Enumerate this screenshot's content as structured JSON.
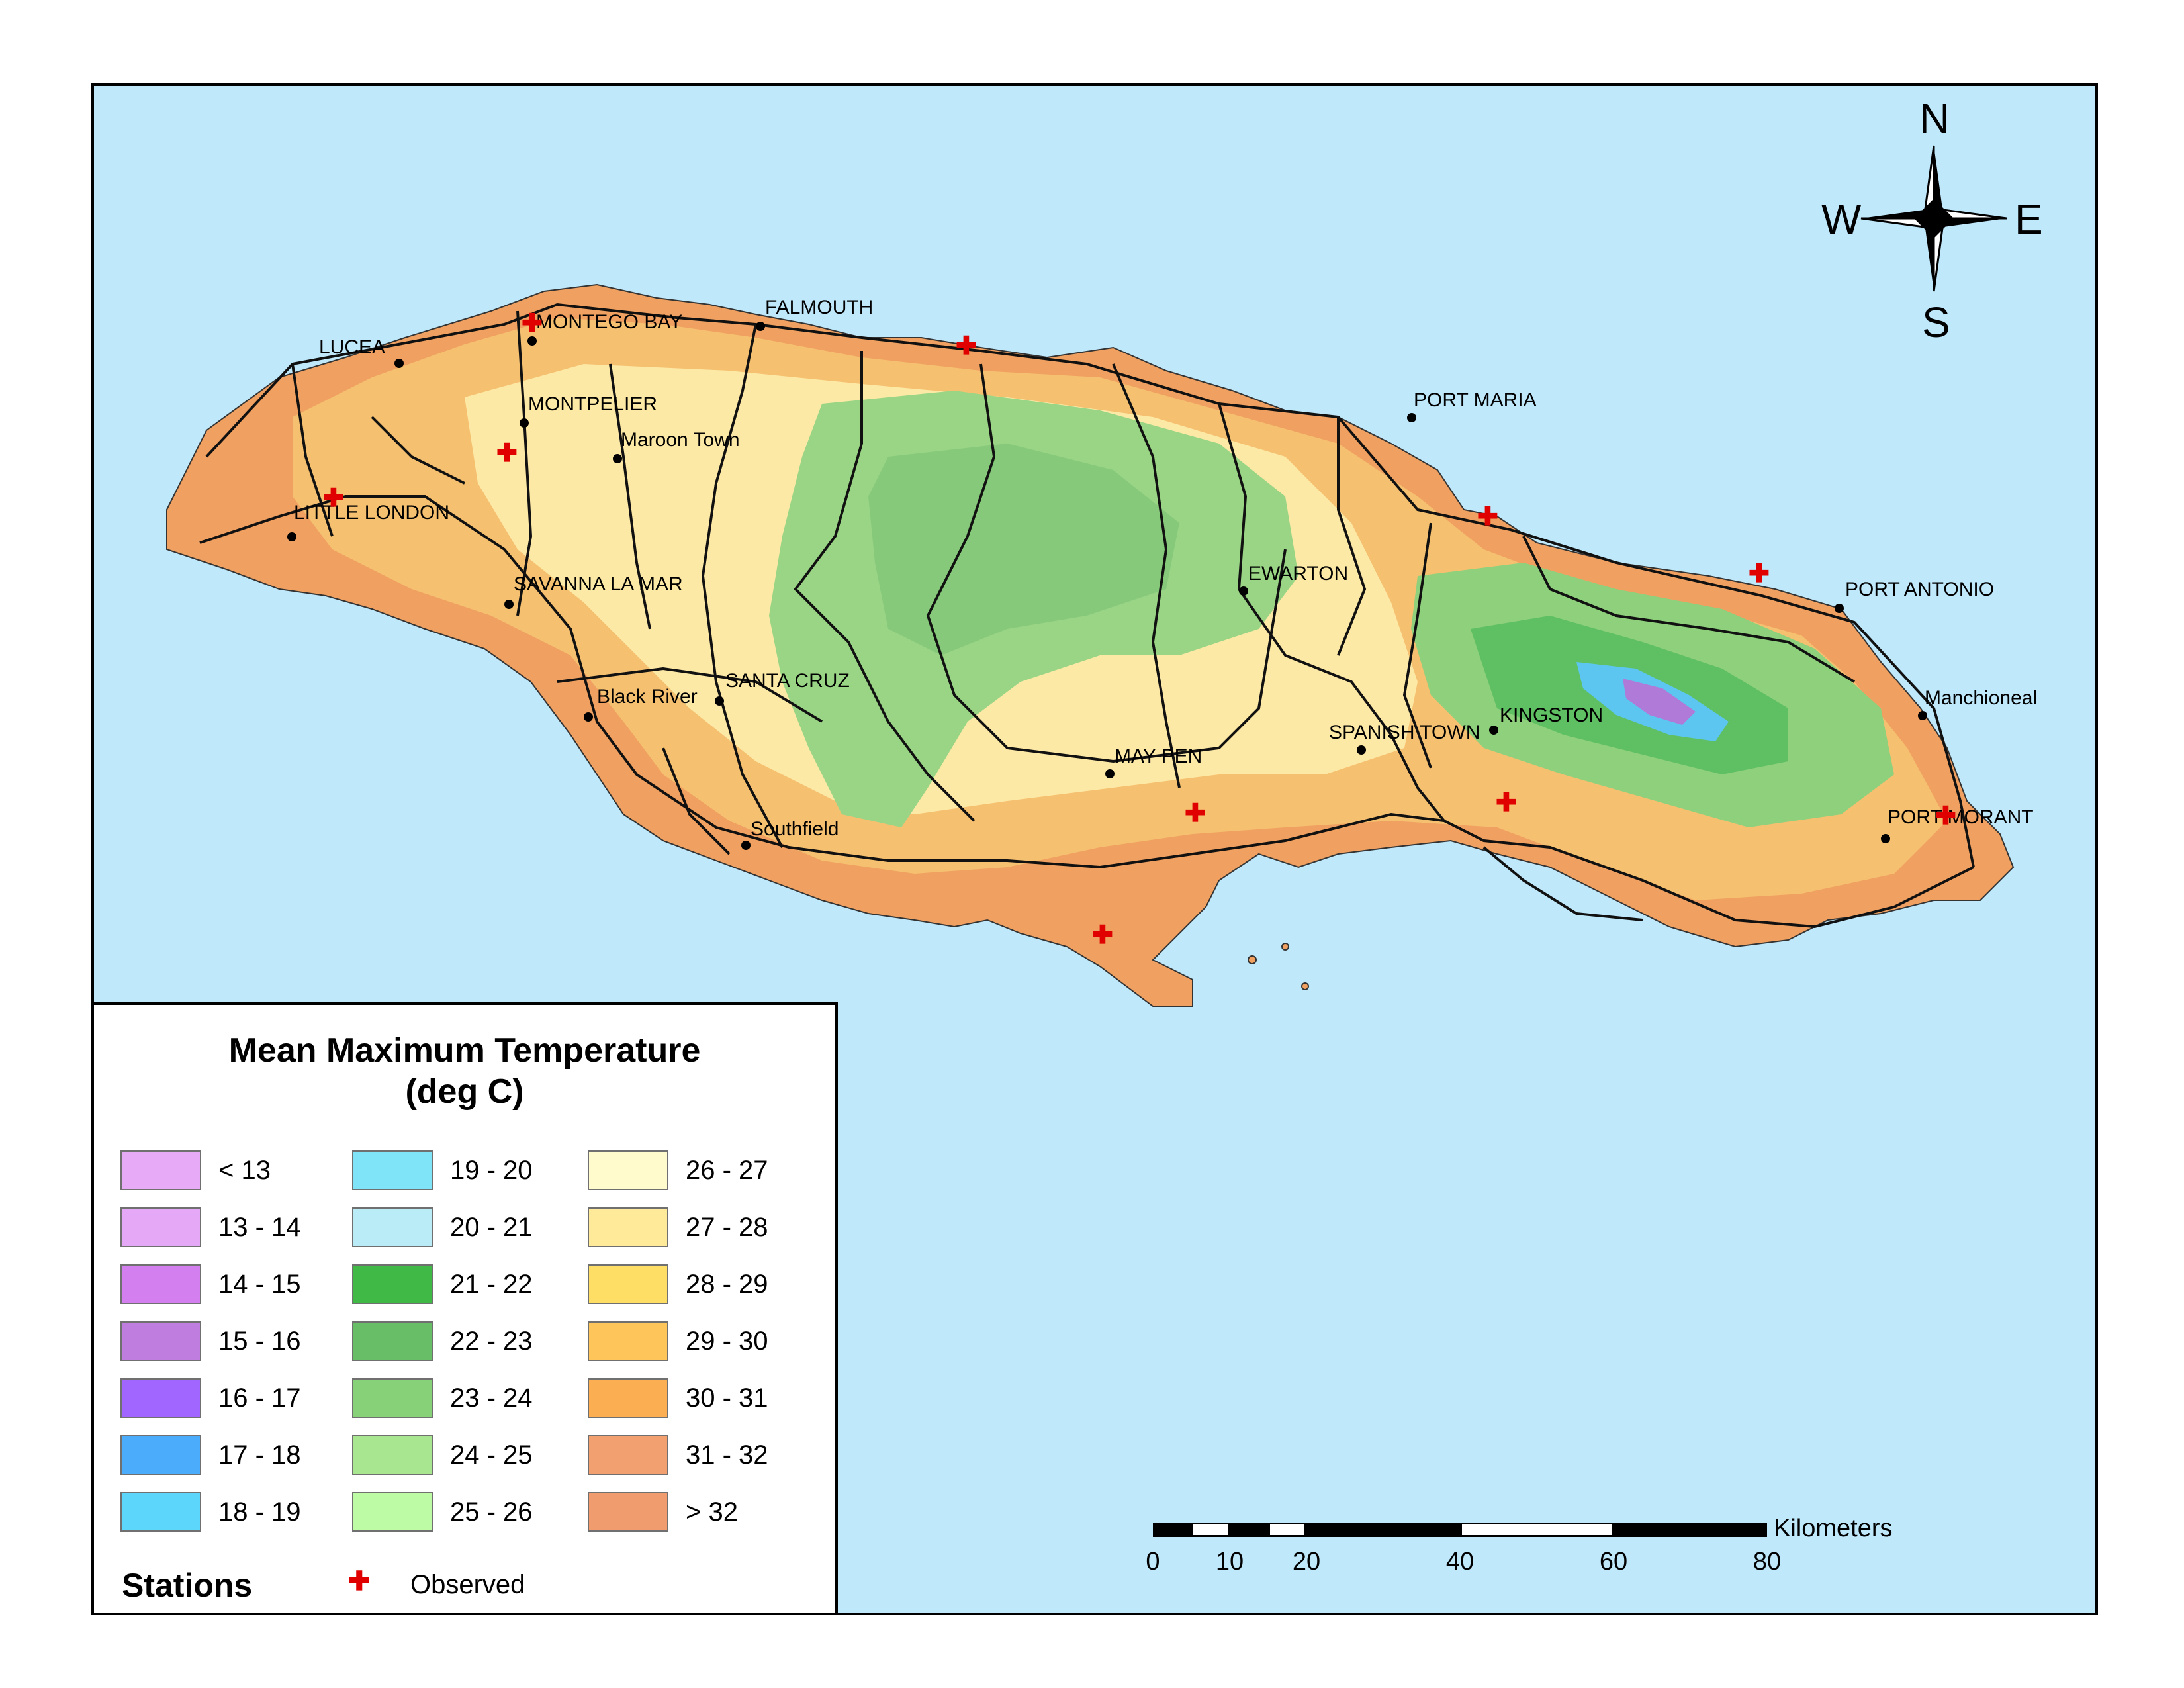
{
  "legend": {
    "title_line1": "Mean Maximum Temperature",
    "title_line2": "(deg C)",
    "classes": [
      {
        "label": "< 13",
        "color": "#e6aaf7"
      },
      {
        "label": "13 - 14",
        "color": "#e4a8f7"
      },
      {
        "label": "14 - 15",
        "color": "#d47fef"
      },
      {
        "label": "15 - 16",
        "color": "#bf7de0"
      },
      {
        "label": "16 - 17",
        "color": "#a066ff"
      },
      {
        "label": "17 - 18",
        "color": "#4aacfb"
      },
      {
        "label": "18 - 19",
        "color": "#5cd6fb"
      },
      {
        "label": "19 - 20",
        "color": "#80e4f9"
      },
      {
        "label": "20 - 21",
        "color": "#b9ecf7"
      },
      {
        "label": "21 - 22",
        "color": "#41b947"
      },
      {
        "label": "22 - 23",
        "color": "#68bd67"
      },
      {
        "label": "23 - 24",
        "color": "#87d279"
      },
      {
        "label": "24 - 25",
        "color": "#a8e690"
      },
      {
        "label": "25 - 26",
        "color": "#bdfca5"
      },
      {
        "label": "26 - 27",
        "color": "#fffbcd"
      },
      {
        "label": "27 - 28",
        "color": "#ffea9a"
      },
      {
        "label": "28 - 29",
        "color": "#ffde66"
      },
      {
        "label": "29 - 30",
        "color": "#fec65a"
      },
      {
        "label": "30 - 31",
        "color": "#fcaf52"
      },
      {
        "label": "31 - 32",
        "color": "#f3a070"
      },
      {
        "label": "> 32",
        "color": "#f09c6e"
      }
    ],
    "stations_label": "Stations",
    "observed_label": "Observed",
    "observed_symbol": "✚"
  },
  "compass": {
    "n": "N",
    "s": "S",
    "e": "E",
    "w": "W"
  },
  "scalebar": {
    "unit": "Kilometers",
    "ticks": [
      "0",
      "10",
      "20",
      "40",
      "60",
      "80"
    ]
  },
  "towns": [
    {
      "name": "LUCEA"
    },
    {
      "name": "MONTEGO BAY"
    },
    {
      "name": "FALMOUTH"
    },
    {
      "name": "MONTPELIER"
    },
    {
      "name": "Maroon Town"
    },
    {
      "name": "LITTLE LONDON"
    },
    {
      "name": "SAVANNA LA MAR"
    },
    {
      "name": "Black River"
    },
    {
      "name": "SANTA CRUZ"
    },
    {
      "name": "Southfield"
    },
    {
      "name": "MAY PEN"
    },
    {
      "name": "SPANISH TOWN"
    },
    {
      "name": "KINGSTON"
    },
    {
      "name": "EWARTON"
    },
    {
      "name": "PORT MARIA"
    },
    {
      "name": "PORT ANTONIO"
    },
    {
      "name": "Manchioneal"
    },
    {
      "name": "PORT MORANT"
    }
  ],
  "colors": {
    "sea": "#bfe8fb",
    "coast_band": "#f0a060",
    "interior": "#f5c070",
    "highland": "#fde9a6",
    "forest": "#9ad586",
    "peak": "#6fc86e",
    "summit": "#5cc6f0",
    "summit_top": "#b07ad8",
    "road": "#111111",
    "station_marker": "#e00000"
  }
}
